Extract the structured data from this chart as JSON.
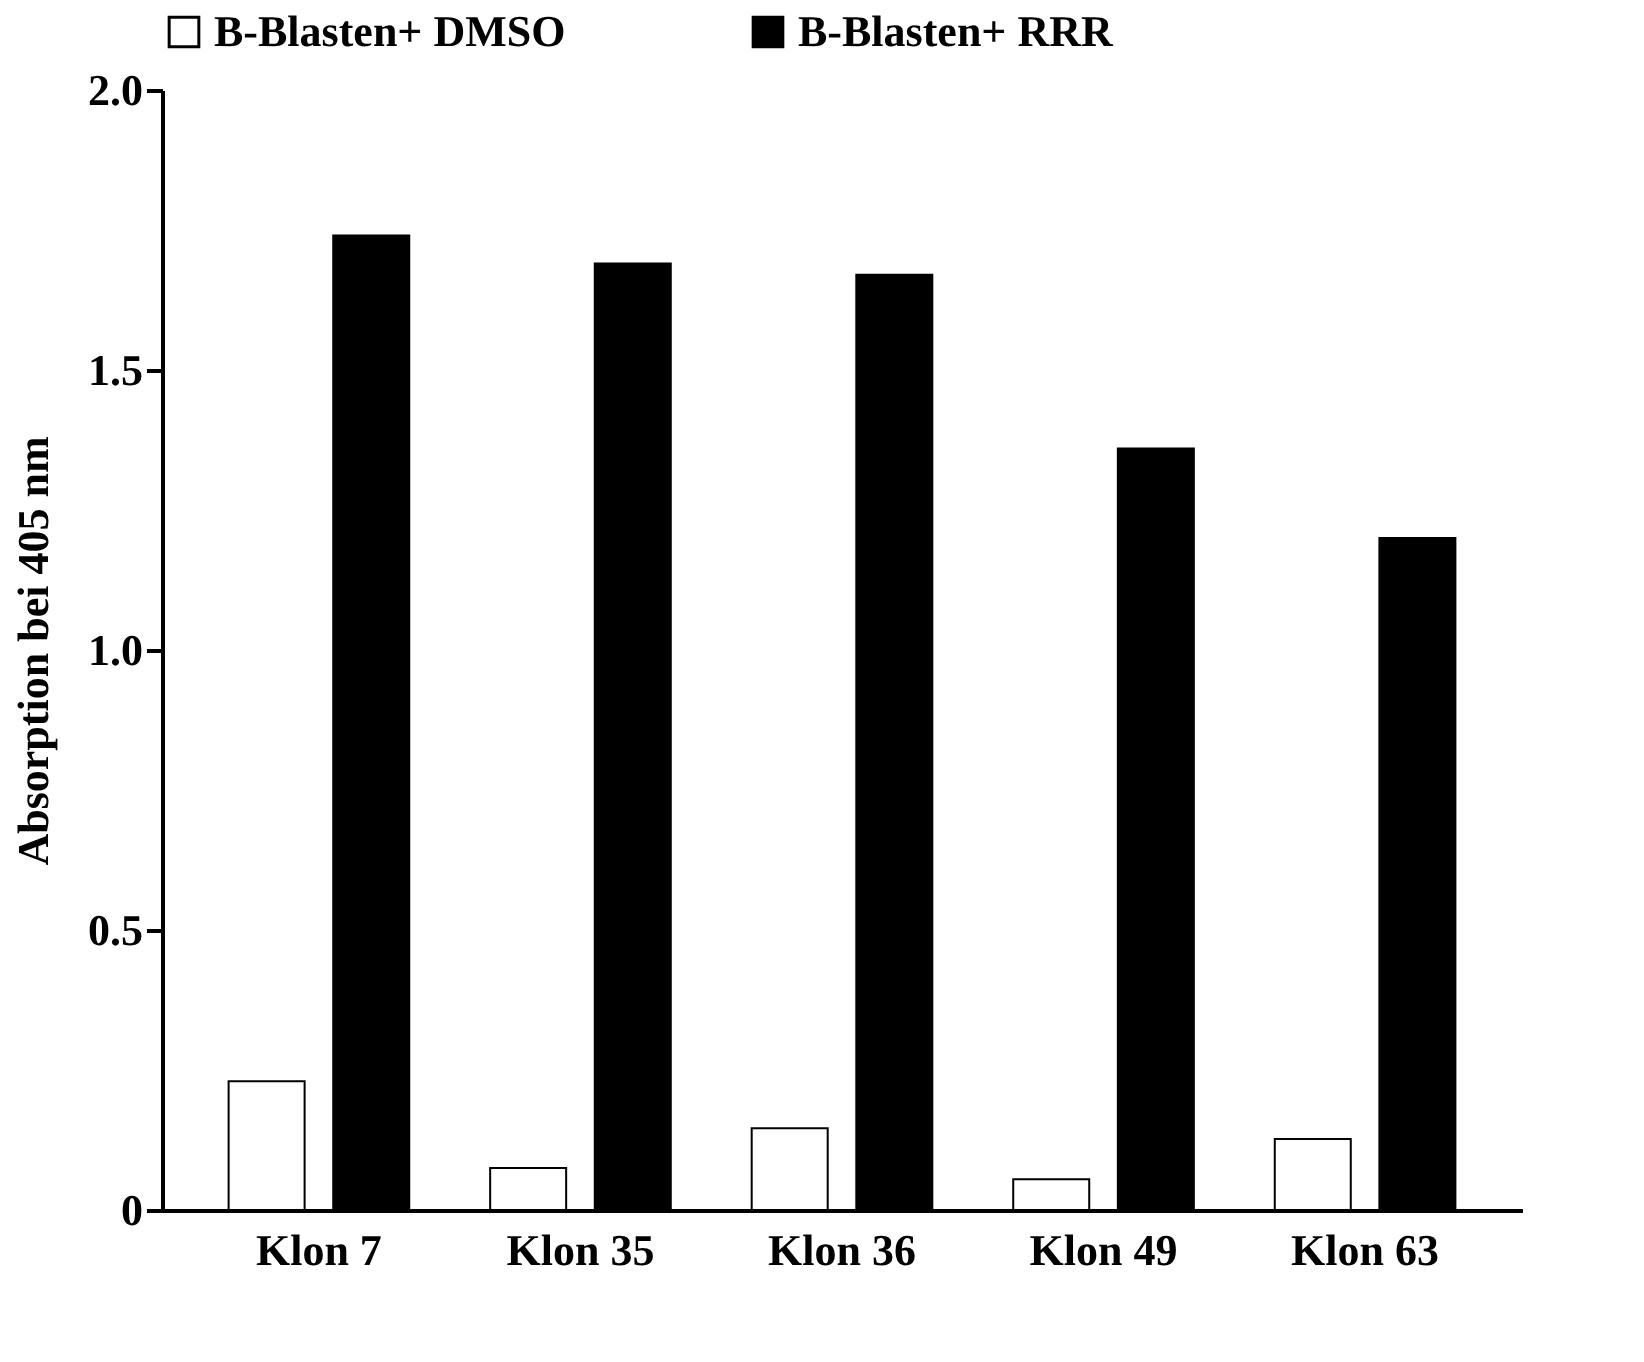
{
  "chart_data": {
    "type": "bar",
    "ylabel": "Absorption bei 405 nm",
    "categories": [
      "Klon 7",
      "Klon 35",
      "Klon 36",
      "Klon 49",
      "Klon 63"
    ],
    "series": [
      {
        "name": "B-Blasten+ DMSO",
        "color": "#ffffff",
        "values": [
          0.23,
          0.075,
          0.146,
          0.055,
          0.127
        ]
      },
      {
        "name": "B-Blasten+ RRR",
        "color": "#000000",
        "values": [
          1.74,
          1.69,
          1.67,
          1.36,
          1.2
        ]
      }
    ],
    "ylim": [
      0,
      2.0
    ],
    "yticks": [
      0,
      {
        "value": 0.5,
        "label": "0.5"
      },
      {
        "value": 1.0,
        "label": "1.0"
      },
      {
        "value": 1.5,
        "label": "1.5"
      },
      {
        "value": 2.0,
        "label": "2.0"
      }
    ],
    "grid": false,
    "legend": "top"
  }
}
